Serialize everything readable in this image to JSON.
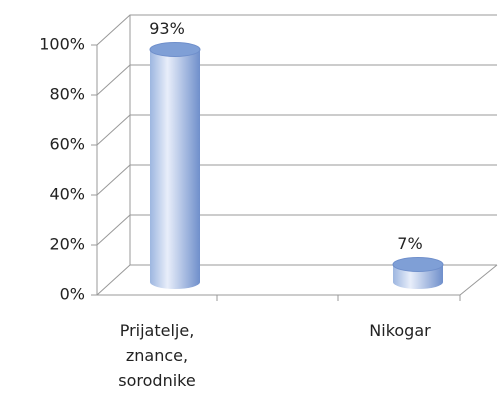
{
  "chart_data": {
    "type": "bar",
    "categories": [
      "Prijatelje, znance, sorodnike",
      "Nikogar"
    ],
    "values": [
      93,
      7
    ],
    "value_labels": [
      "93%",
      "7%"
    ],
    "color": "#7f9fd6",
    "ylim": [
      0,
      100
    ],
    "yticks": [
      {
        "value": 0,
        "label": "0%"
      },
      {
        "value": 20,
        "label": "20%"
      },
      {
        "value": 40,
        "label": "40%"
      },
      {
        "value": 60,
        "label": "60%"
      },
      {
        "value": 80,
        "label": "80%"
      },
      {
        "value": 100,
        "label": "100%"
      }
    ],
    "grid": true
  }
}
